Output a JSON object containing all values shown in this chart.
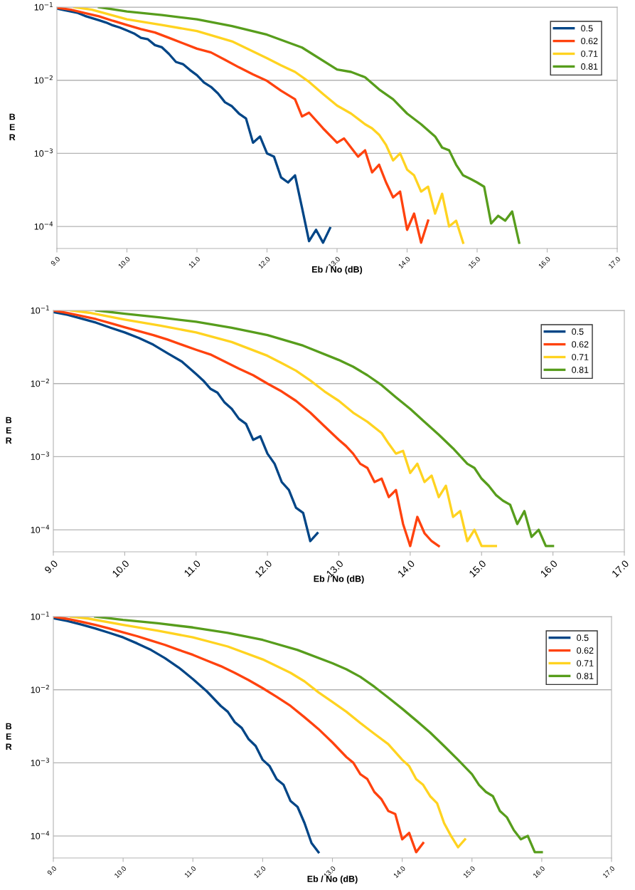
{
  "chart_data": [
    {
      "type": "line",
      "xlabel": "Eb / No (dB)",
      "ylabel": "BER",
      "log": "y",
      "grid": "y",
      "legend": "top right",
      "marker": "none",
      "line_style": "solid",
      "xlim": [
        9.0,
        17.0
      ],
      "xticks": [
        {
          "value": 9,
          "label": "9.0"
        },
        {
          "value": 10,
          "label": "10.0"
        },
        {
          "value": 11,
          "label": "11.0"
        },
        {
          "value": 12,
          "label": "12.0"
        },
        {
          "value": 13,
          "label": "13.0"
        },
        {
          "value": 14,
          "label": "14.0"
        },
        {
          "value": 15,
          "label": "15.0"
        },
        {
          "value": 16,
          "label": "16.0"
        },
        {
          "value": 17,
          "label": "17.0"
        }
      ],
      "ylim": [
        5e-05,
        0.1
      ],
      "yticks": [
        {
          "value": 0.1,
          "label": "10$^{−1}$"
        },
        {
          "value": 0.01,
          "label": "10$^{−2}$"
        },
        {
          "value": 0.001,
          "label": "10$^{−3}$"
        },
        {
          "value": 0.0001,
          "label": "10$^{−4}$"
        }
      ],
      "series": [
        {
          "name": "0.5",
          "color": "#004586",
          "x": [
            9.0,
            9.1,
            9.2,
            9.3,
            9.4,
            9.5,
            9.6,
            9.7,
            9.8,
            9.9,
            10.0,
            10.1,
            10.2,
            10.3,
            10.4,
            10.5,
            10.6,
            10.7,
            10.8,
            10.9,
            11.0,
            11.1,
            11.2,
            11.3,
            11.4,
            11.5,
            11.6,
            11.7,
            11.8,
            11.9,
            12.0,
            12.1,
            12.2,
            12.3,
            12.4,
            12.5,
            12.6,
            12.7,
            12.8,
            12.9
          ],
          "values": [
            0.0955,
            0.0912,
            0.0871,
            0.0832,
            0.0759,
            0.0708,
            0.0661,
            0.0617,
            0.0562,
            0.0525,
            0.0479,
            0.0437,
            0.038,
            0.0363,
            0.0302,
            0.0282,
            0.0229,
            0.0178,
            0.0166,
            0.0138,
            0.0117,
            0.0093,
            0.0081,
            0.0066,
            0.005,
            0.0044,
            0.0035,
            0.003,
            0.0014,
            0.0017,
            0.001,
            0.0009,
            0.00047,
            0.0004,
            0.0005,
            0.00018,
            6.3e-05,
            9e-05,
            6e-05,
            9.5e-05
          ]
        },
        {
          "name": "0.62",
          "color": "#ff420e",
          "x": [
            9.0,
            9.2,
            9.4,
            9.6,
            9.8,
            10.0,
            10.2,
            10.4,
            10.6,
            10.8,
            11.0,
            11.2,
            11.4,
            11.6,
            11.8,
            12.0,
            12.2,
            12.4,
            12.5,
            12.6,
            12.8,
            13.0,
            13.1,
            13.2,
            13.3,
            13.4,
            13.5,
            13.6,
            13.7,
            13.8,
            13.9,
            14.0,
            14.1,
            14.2,
            14.3
          ],
          "values": [
            0.098,
            0.092,
            0.083,
            0.075,
            0.065,
            0.057,
            0.05,
            0.045,
            0.038,
            0.032,
            0.027,
            0.024,
            0.019,
            0.015,
            0.012,
            0.0098,
            0.0072,
            0.0055,
            0.0032,
            0.0036,
            0.0022,
            0.0014,
            0.0016,
            0.0012,
            0.0009,
            0.0011,
            0.00055,
            0.0007,
            0.0004,
            0.00025,
            0.0003,
            9e-05,
            0.00015,
            6e-05,
            0.00012
          ]
        },
        {
          "name": "0.71",
          "color": "#ffd320",
          "x": [
            9.25,
            9.5,
            10.0,
            10.5,
            11.0,
            11.5,
            12.0,
            12.2,
            12.4,
            12.6,
            12.8,
            13.0,
            13.2,
            13.4,
            13.5,
            13.6,
            13.7,
            13.8,
            13.9,
            14.0,
            14.1,
            14.2,
            14.3,
            14.4,
            14.5,
            14.6,
            14.7,
            14.8
          ],
          "values": [
            0.1,
            0.092,
            0.068,
            0.057,
            0.047,
            0.034,
            0.02,
            0.016,
            0.013,
            0.0095,
            0.0065,
            0.0045,
            0.0035,
            0.0025,
            0.0022,
            0.0018,
            0.0013,
            0.0008,
            0.001,
            0.0006,
            0.0005,
            0.0003,
            0.00035,
            0.00015,
            0.00028,
            0.0001,
            0.00012,
            6e-05
          ]
        },
        {
          "name": "0.81",
          "color": "#579d1c",
          "x": [
            9.6,
            10.0,
            10.5,
            11.0,
            11.5,
            12.0,
            12.5,
            13.0,
            13.2,
            13.4,
            13.6,
            13.8,
            14.0,
            14.2,
            14.4,
            14.5,
            14.6,
            14.7,
            14.8,
            14.9,
            15.0,
            15.1,
            15.2,
            15.3,
            15.4,
            15.5,
            15.6
          ],
          "values": [
            0.1,
            0.087,
            0.078,
            0.068,
            0.055,
            0.042,
            0.028,
            0.014,
            0.013,
            0.011,
            0.0075,
            0.0055,
            0.0035,
            0.0025,
            0.0017,
            0.0012,
            0.0011,
            0.0007,
            0.0005,
            0.00045,
            0.0004,
            0.00035,
            0.00011,
            0.00014,
            0.00012,
            0.00016,
            6e-05
          ]
        }
      ]
    },
    {
      "type": "line",
      "xlabel": "Eb / No (dB)",
      "ylabel": "BER",
      "log": "y",
      "grid": "y",
      "legend": "top right",
      "marker": "none",
      "line_style": "solid",
      "xlim": [
        9.0,
        17.0
      ],
      "xticks": [
        {
          "value": 9,
          "label": "9.0"
        },
        {
          "value": 10,
          "label": "10.0"
        },
        {
          "value": 11,
          "label": "11.0"
        },
        {
          "value": 12,
          "label": "12.0"
        },
        {
          "value": 13,
          "label": "13.0"
        },
        {
          "value": 14,
          "label": "14.0"
        },
        {
          "value": 15,
          "label": "15.0"
        },
        {
          "value": 16,
          "label": "16.0"
        },
        {
          "value": 17,
          "label": "17.0"
        }
      ],
      "ylim": [
        5e-05,
        0.1
      ],
      "yticks": [
        {
          "value": 0.1,
          "label": "10$^{−1}$"
        },
        {
          "value": 0.01,
          "label": "10$^{−2}$"
        },
        {
          "value": 0.001,
          "label": "10$^{−3}$"
        },
        {
          "value": 0.0001,
          "label": "10$^{−4}$"
        }
      ],
      "series": [
        {
          "name": "0.5",
          "color": "#004586",
          "x": [
            9.0,
            9.2,
            9.4,
            9.6,
            9.8,
            10.0,
            10.2,
            10.4,
            10.6,
            10.8,
            11.0,
            11.1,
            11.2,
            11.3,
            11.4,
            11.5,
            11.6,
            11.7,
            11.8,
            11.9,
            12.0,
            12.1,
            12.2,
            12.3,
            12.4,
            12.5,
            12.6,
            12.7
          ],
          "values": [
            0.095,
            0.087,
            0.077,
            0.068,
            0.058,
            0.05,
            0.042,
            0.034,
            0.026,
            0.02,
            0.0135,
            0.011,
            0.0085,
            0.0075,
            0.0055,
            0.0045,
            0.0033,
            0.0028,
            0.0017,
            0.0019,
            0.0011,
            0.0008,
            0.00045,
            0.00035,
            0.0002,
            0.00017,
            7e-05,
            9e-05
          ]
        },
        {
          "name": "0.62",
          "color": "#ff420e",
          "x": [
            9.0,
            9.2,
            9.4,
            9.6,
            9.8,
            10.0,
            10.2,
            10.4,
            10.6,
            10.8,
            11.0,
            11.2,
            11.4,
            11.6,
            11.8,
            12.0,
            12.2,
            12.4,
            12.6,
            12.8,
            13.0,
            13.1,
            13.2,
            13.3,
            13.4,
            13.5,
            13.6,
            13.7,
            13.8,
            13.9,
            14.0,
            14.1,
            14.2,
            14.3,
            14.4
          ],
          "values": [
            0.1,
            0.092,
            0.084,
            0.076,
            0.067,
            0.059,
            0.052,
            0.046,
            0.04,
            0.034,
            0.029,
            0.025,
            0.02,
            0.016,
            0.013,
            0.01,
            0.0078,
            0.0058,
            0.004,
            0.0026,
            0.0017,
            0.0014,
            0.0011,
            0.0008,
            0.0007,
            0.00045,
            0.0005,
            0.00028,
            0.00035,
            0.00012,
            6e-05,
            0.00015,
            9e-05,
            7e-05,
            6e-05
          ]
        },
        {
          "name": "0.71",
          "color": "#ffd320",
          "x": [
            9.25,
            9.5,
            10.0,
            10.5,
            11.0,
            11.5,
            12.0,
            12.2,
            12.4,
            12.6,
            12.8,
            13.0,
            13.2,
            13.4,
            13.6,
            13.7,
            13.8,
            13.9,
            14.0,
            14.1,
            14.2,
            14.3,
            14.4,
            14.5,
            14.6,
            14.7,
            14.8,
            14.9,
            15.0,
            15.2
          ],
          "values": [
            0.1,
            0.093,
            0.075,
            0.062,
            0.05,
            0.037,
            0.024,
            0.019,
            0.015,
            0.011,
            0.0078,
            0.0058,
            0.004,
            0.003,
            0.0021,
            0.0015,
            0.0011,
            0.0012,
            0.0006,
            0.0008,
            0.00045,
            0.00055,
            0.00028,
            0.0004,
            0.00015,
            0.00018,
            7e-05,
            0.0001,
            6e-05,
            6e-05
          ]
        },
        {
          "name": "0.81",
          "color": "#579d1c",
          "x": [
            9.6,
            10.0,
            10.5,
            11.0,
            11.5,
            12.0,
            12.5,
            13.0,
            13.2,
            13.4,
            13.6,
            13.8,
            14.0,
            14.2,
            14.4,
            14.6,
            14.8,
            14.9,
            15.0,
            15.1,
            15.2,
            15.3,
            15.4,
            15.5,
            15.6,
            15.7,
            15.8,
            15.9,
            16.0
          ],
          "values": [
            0.1,
            0.09,
            0.08,
            0.07,
            0.058,
            0.046,
            0.033,
            0.021,
            0.017,
            0.013,
            0.0095,
            0.0065,
            0.0045,
            0.003,
            0.002,
            0.0013,
            0.0008,
            0.0007,
            0.0005,
            0.0004,
            0.0003,
            0.00025,
            0.00022,
            0.00012,
            0.00018,
            8e-05,
            0.0001,
            6e-05,
            6e-05
          ]
        }
      ]
    },
    {
      "type": "line",
      "xlabel": "Eb / No (dB)",
      "ylabel": "BER",
      "log": "y",
      "grid": "y",
      "legend": "top right",
      "marker": "none",
      "line_style": "solid",
      "xlim": [
        9.0,
        17.0
      ],
      "xticks": [
        {
          "value": 9,
          "label": "9.0"
        },
        {
          "value": 10,
          "label": "10.0"
        },
        {
          "value": 11,
          "label": "11.0"
        },
        {
          "value": 12,
          "label": "12.0"
        },
        {
          "value": 13,
          "label": "13.0"
        },
        {
          "value": 14,
          "label": "14.0"
        },
        {
          "value": 15,
          "label": "15.0"
        },
        {
          "value": 16,
          "label": "16.0"
        },
        {
          "value": 17,
          "label": "17.0"
        }
      ],
      "ylim": [
        5e-05,
        0.1
      ],
      "yticks": [
        {
          "value": 0.1,
          "label": "10$^{−1}$"
        },
        {
          "value": 0.01,
          "label": "10$^{−2}$"
        },
        {
          "value": 0.001,
          "label": "10$^{−3}$"
        },
        {
          "value": 0.0001,
          "label": "10$^{−4}$"
        }
      ],
      "series": [
        {
          "name": "0.5",
          "color": "#004586",
          "x": [
            9.0,
            9.2,
            9.4,
            9.6,
            9.8,
            10.0,
            10.2,
            10.4,
            10.6,
            10.8,
            11.0,
            11.2,
            11.4,
            11.5,
            11.6,
            11.7,
            11.8,
            11.9,
            12.0,
            12.1,
            12.2,
            12.3,
            12.4,
            12.5,
            12.6,
            12.7,
            12.8
          ],
          "values": [
            0.095,
            0.087,
            0.078,
            0.069,
            0.06,
            0.052,
            0.043,
            0.035,
            0.027,
            0.02,
            0.014,
            0.0095,
            0.006,
            0.005,
            0.0036,
            0.003,
            0.0021,
            0.0017,
            0.0011,
            0.0009,
            0.0006,
            0.0005,
            0.0003,
            0.00025,
            0.00015,
            8e-05,
            6e-05
          ]
        },
        {
          "name": "0.62",
          "color": "#ff420e",
          "x": [
            9.0,
            9.2,
            9.4,
            9.6,
            9.8,
            10.0,
            10.2,
            10.4,
            10.6,
            10.8,
            11.0,
            11.2,
            11.4,
            11.6,
            11.8,
            12.0,
            12.2,
            12.4,
            12.6,
            12.8,
            13.0,
            13.2,
            13.3,
            13.4,
            13.5,
            13.6,
            13.7,
            13.8,
            13.9,
            14.0,
            14.1,
            14.2,
            14.3
          ],
          "values": [
            0.1,
            0.093,
            0.085,
            0.077,
            0.069,
            0.061,
            0.054,
            0.047,
            0.041,
            0.035,
            0.03,
            0.025,
            0.021,
            0.017,
            0.0135,
            0.0105,
            0.008,
            0.006,
            0.0042,
            0.0029,
            0.0019,
            0.0012,
            0.001,
            0.0007,
            0.0006,
            0.0004,
            0.00032,
            0.00022,
            0.0002,
            9e-05,
            0.00011,
            6e-05,
            8e-05
          ]
        },
        {
          "name": "0.71",
          "color": "#ffd320",
          "x": [
            9.25,
            9.5,
            10.0,
            10.5,
            11.0,
            11.5,
            12.0,
            12.2,
            12.4,
            12.6,
            12.8,
            13.0,
            13.2,
            13.4,
            13.6,
            13.8,
            14.0,
            14.1,
            14.2,
            14.3,
            14.4,
            14.5,
            14.6,
            14.7,
            14.8,
            14.9
          ],
          "values": [
            0.1,
            0.094,
            0.077,
            0.064,
            0.052,
            0.039,
            0.026,
            0.021,
            0.017,
            0.013,
            0.0092,
            0.0068,
            0.005,
            0.0035,
            0.0025,
            0.0018,
            0.0011,
            0.0009,
            0.0006,
            0.0005,
            0.00035,
            0.00028,
            0.00015,
            0.0001,
            7e-05,
            9e-05
          ]
        },
        {
          "name": "0.81",
          "color": "#579d1c",
          "x": [
            9.6,
            10.0,
            10.5,
            11.0,
            11.5,
            12.0,
            12.5,
            13.0,
            13.2,
            13.4,
            13.6,
            13.8,
            14.0,
            14.2,
            14.4,
            14.6,
            14.8,
            15.0,
            15.1,
            15.2,
            15.3,
            15.4,
            15.5,
            15.6,
            15.7,
            15.8,
            15.9,
            16.0
          ],
          "values": [
            0.1,
            0.09,
            0.081,
            0.071,
            0.06,
            0.048,
            0.035,
            0.023,
            0.019,
            0.015,
            0.011,
            0.0078,
            0.0055,
            0.0038,
            0.0026,
            0.0017,
            0.0011,
            0.0007,
            0.0005,
            0.0004,
            0.00035,
            0.00022,
            0.00018,
            0.00012,
            9e-05,
            0.0001,
            6e-05,
            6e-05
          ]
        }
      ]
    }
  ]
}
